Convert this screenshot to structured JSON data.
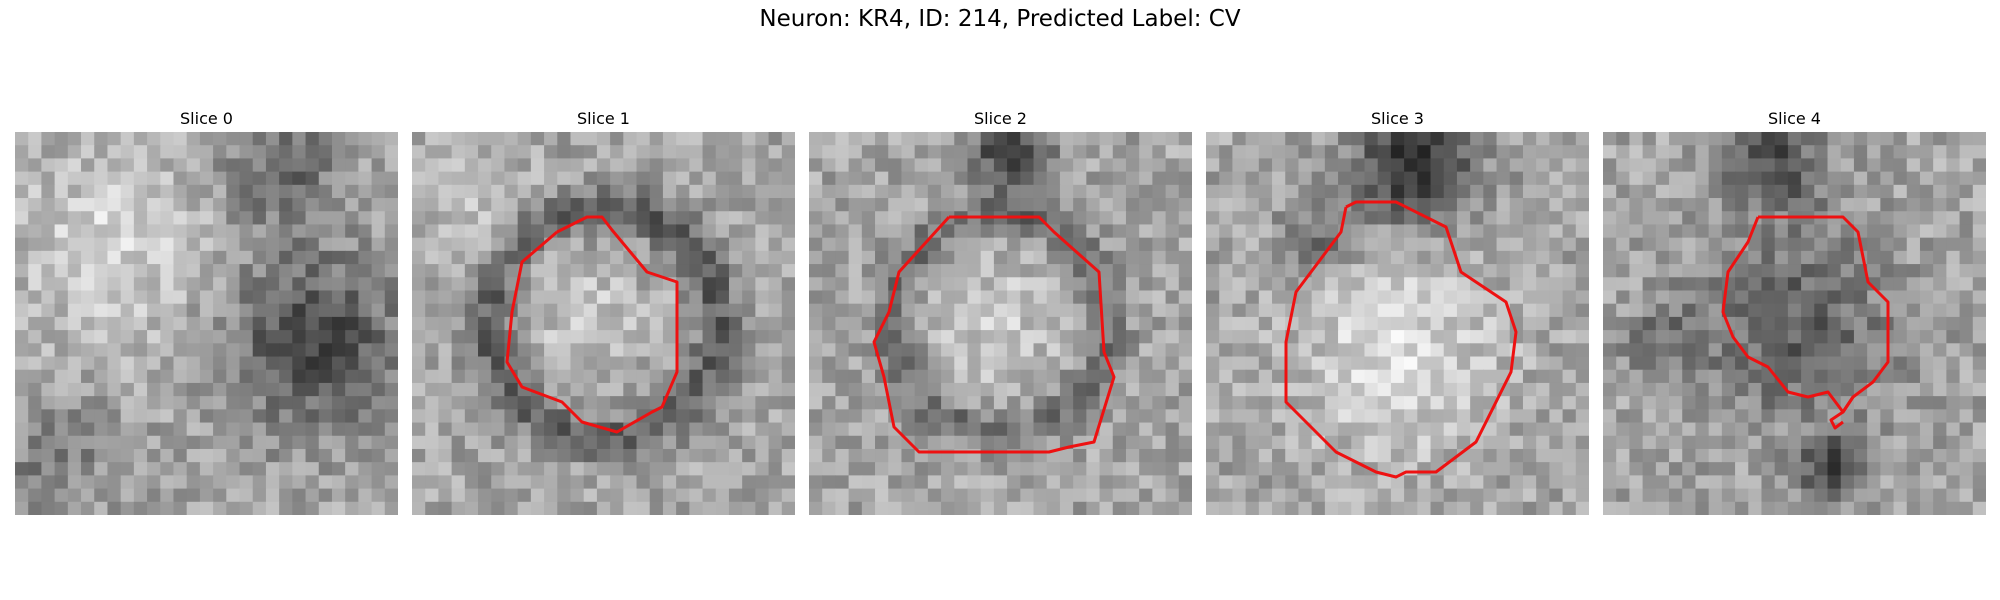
{
  "figure": {
    "title": "Neuron: KR4, ID: 214, Predicted Label: CV",
    "contour_color": "#ee1111",
    "panels": [
      {
        "title": "Slice 0",
        "has_contour": false,
        "seed": 11
      },
      {
        "title": "Slice 1",
        "has_contour": true,
        "seed": 23
      },
      {
        "title": "Slice 2",
        "has_contour": true,
        "seed": 37
      },
      {
        "title": "Slice 3",
        "has_contour": true,
        "seed": 41
      },
      {
        "title": "Slice 4",
        "has_contour": true,
        "seed": 53
      }
    ]
  }
}
